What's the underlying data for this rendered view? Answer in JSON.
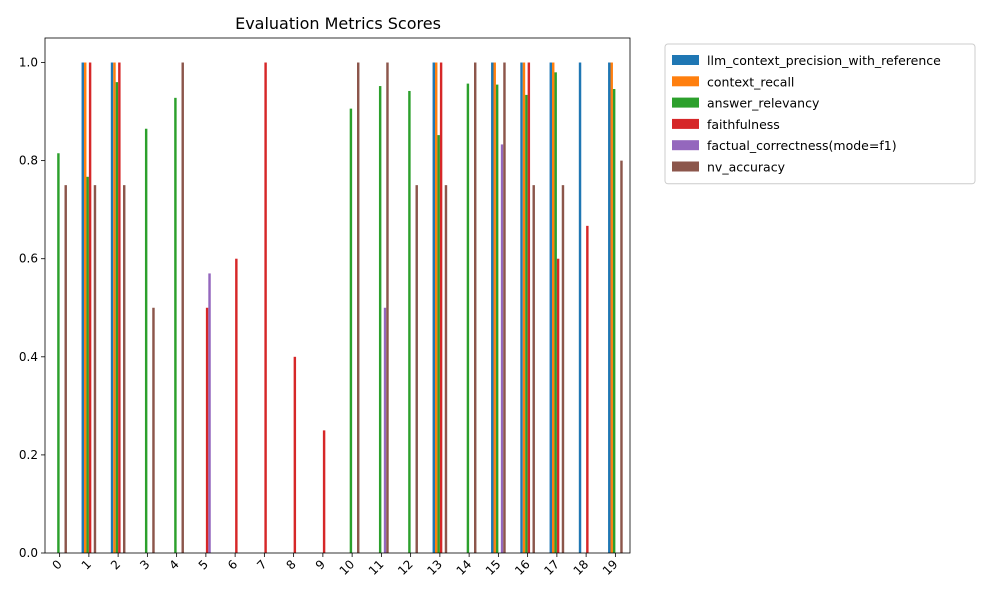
{
  "chart_data": {
    "type": "bar",
    "title": "Evaluation Metrics Scores",
    "xlabel": "",
    "ylabel": "",
    "ylim": [
      0,
      1.05
    ],
    "yticks": [
      "0.0",
      "0.2",
      "0.4",
      "0.6",
      "0.8",
      "1.0"
    ],
    "categories": [
      "0",
      "1",
      "2",
      "3",
      "4",
      "5",
      "6",
      "7",
      "8",
      "9",
      "10",
      "11",
      "12",
      "13",
      "14",
      "15",
      "16",
      "17",
      "18",
      "19"
    ],
    "legend_position": "outside-top-right",
    "series": [
      {
        "name": "llm_context_precision_with_reference",
        "color": "#1f77b4",
        "values": [
          0,
          1.0,
          1.0,
          0,
          0,
          0,
          0,
          0,
          0,
          0,
          0,
          0,
          0,
          1.0,
          0,
          1.0,
          1.0,
          1.0,
          1.0,
          1.0
        ]
      },
      {
        "name": "context_recall",
        "color": "#ff7f0e",
        "values": [
          0,
          1.0,
          1.0,
          0,
          0,
          0,
          0,
          0,
          0,
          0,
          0,
          0,
          0,
          1.0,
          0,
          1.0,
          1.0,
          1.0,
          0,
          1.0
        ]
      },
      {
        "name": "answer_relevancy",
        "color": "#2ca02c",
        "values": [
          0.815,
          0.767,
          0.96,
          0.865,
          0.928,
          0,
          0,
          0,
          0,
          0,
          0.906,
          0.952,
          0.942,
          0.852,
          0.957,
          0.955,
          0.934,
          0.98,
          0,
          0.946
        ]
      },
      {
        "name": "faithfulness",
        "color": "#d62728",
        "values": [
          0,
          1.0,
          1.0,
          0,
          0,
          0.5,
          0.6,
          1.0,
          0.4,
          0.25,
          0,
          0,
          0,
          1.0,
          0,
          0,
          1.0,
          0.6,
          0.667,
          0
        ]
      },
      {
        "name": "factual_correctness(mode=f1)",
        "color": "#9467bd",
        "values": [
          0,
          0,
          0,
          0,
          0,
          0.57,
          0,
          0,
          0,
          0,
          0,
          0.5,
          0,
          0,
          0,
          0.833,
          0,
          0,
          0,
          0
        ]
      },
      {
        "name": "nv_accuracy",
        "color": "#8c564b",
        "values": [
          0.75,
          0.75,
          0.75,
          0.5,
          1.0,
          0,
          0,
          0,
          0,
          0,
          1.0,
          1.0,
          0.75,
          0.75,
          1.0,
          1.0,
          0.75,
          0.75,
          0,
          0.8
        ]
      }
    ]
  }
}
